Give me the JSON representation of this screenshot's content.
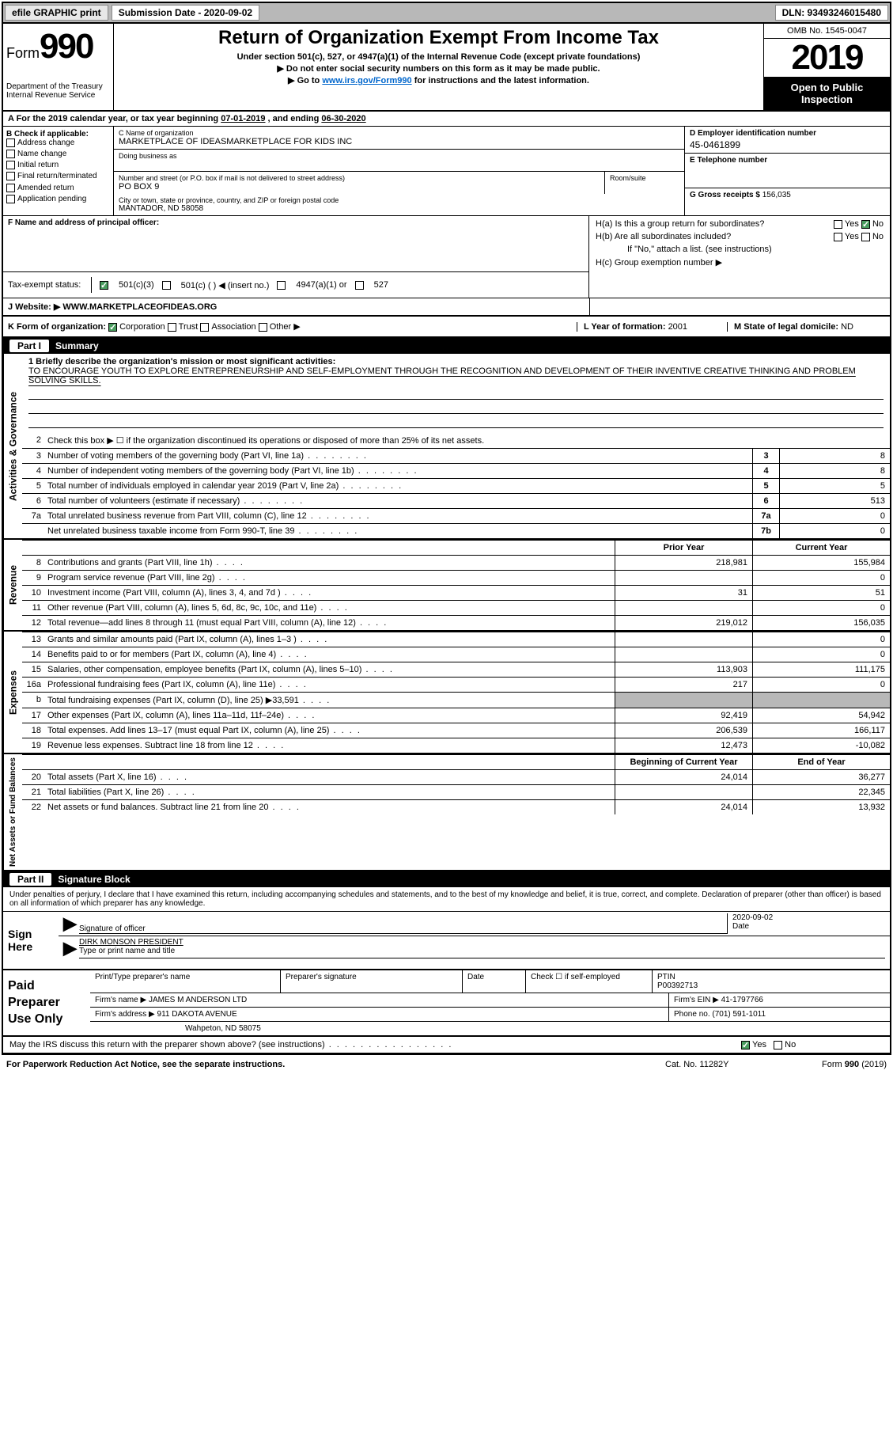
{
  "topbar": {
    "efile": "efile GRAPHIC print",
    "subdate_lbl": "Submission Date - ",
    "subdate": "2020-09-02",
    "dln": "DLN: 93493246015480"
  },
  "header": {
    "form": "Form",
    "num": "990",
    "dept": "Department of the Treasury",
    "irs": "Internal Revenue Service",
    "title": "Return of Organization Exempt From Income Tax",
    "sub1": "Under section 501(c), 527, or 4947(a)(1) of the Internal Revenue Code (except private foundations)",
    "sub2": "▶ Do not enter social security numbers on this form as it may be made public.",
    "sub3_pre": "▶ Go to ",
    "sub3_link": "www.irs.gov/Form990",
    "sub3_post": " for instructions and the latest information.",
    "omb": "OMB No. 1545-0047",
    "year": "2019",
    "open": "Open to Public Inspection"
  },
  "lineA": {
    "text_pre": "A For the 2019 calendar year, or tax year beginning ",
    "begin": "07-01-2019",
    "text_mid": " , and ending ",
    "end": "06-30-2020"
  },
  "colB": {
    "hdr": "B Check if applicable:",
    "items": [
      "Address change",
      "Name change",
      "Initial return",
      "Final return/terminated",
      "Amended return",
      "Application pending"
    ]
  },
  "colC": {
    "name_lbl": "C Name of organization",
    "name": "MARKETPLACE OF IDEASMARKETPLACE FOR KIDS INC",
    "dba_lbl": "Doing business as",
    "addr_lbl": "Number and street (or P.O. box if mail is not delivered to street address)",
    "addr": "PO BOX 9",
    "room_lbl": "Room/suite",
    "city_lbl": "City or town, state or province, country, and ZIP or foreign postal code",
    "city": "MANTADOR, ND  58058"
  },
  "colD": {
    "ein_lbl": "D Employer identification number",
    "ein": "45-0461899",
    "tel_lbl": "E Telephone number",
    "gross_lbl": "G Gross receipts $ ",
    "gross": "156,035"
  },
  "colF": {
    "lbl": "F  Name and address of principal officer:",
    "te_lbl": "Tax-exempt status:",
    "opts": [
      "501(c)(3)",
      "501(c) (   ) ◀ (insert no.)",
      "4947(a)(1) or",
      "527"
    ]
  },
  "colH": {
    "a": "H(a)  Is this a group return for subordinates?",
    "b": "H(b)  Are all subordinates included?",
    "b2": "If \"No,\" attach a list. (see instructions)",
    "c": "H(c)  Group exemption number ▶",
    "yes": "Yes",
    "no": "No"
  },
  "secJ": {
    "lbl": "J    Website: ▶  ",
    "val": "WWW.MARKETPLACEOFIDEAS.ORG"
  },
  "secK": {
    "lbl": "K Form of organization:",
    "opts": [
      "Corporation",
      "Trust",
      "Association",
      "Other ▶"
    ],
    "l_lbl": "L Year of formation: ",
    "l_val": "2001",
    "m_lbl": "M State of legal domicile: ",
    "m_val": "ND"
  },
  "part1": {
    "hdr": "Summary",
    "partnum": "Part I",
    "side_ag": "Activities & Governance",
    "side_rev": "Revenue",
    "side_exp": "Expenses",
    "side_na": "Net Assets or Fund Balances",
    "q1_lbl": "1   Briefly describe the organization's mission or most significant activities:",
    "q1_val": "TO ENCOURAGE YOUTH TO EXPLORE ENTREPRENEURSHIP AND SELF-EMPLOYMENT THROUGH THE RECOGNITION AND DEVELOPMENT OF THEIR INVENTIVE CREATIVE THINKING AND PROBLEM SOLVING SKILLS.",
    "q2": "Check this box ▶ ☐  if the organization discontinued its operations or disposed of more than 25% of its net assets.",
    "rows_ag": [
      {
        "n": "3",
        "d": "Number of voting members of the governing body (Part VI, line 1a)",
        "b": "3",
        "v": "8"
      },
      {
        "n": "4",
        "d": "Number of independent voting members of the governing body (Part VI, line 1b)",
        "b": "4",
        "v": "8"
      },
      {
        "n": "5",
        "d": "Total number of individuals employed in calendar year 2019 (Part V, line 2a)",
        "b": "5",
        "v": "5"
      },
      {
        "n": "6",
        "d": "Total number of volunteers (estimate if necessary)",
        "b": "6",
        "v": "513"
      },
      {
        "n": "7a",
        "d": "Total unrelated business revenue from Part VIII, column (C), line 12",
        "b": "7a",
        "v": "0"
      },
      {
        "n": "",
        "d": "Net unrelated business taxable income from Form 990-T, line 39",
        "b": "7b",
        "v": "0"
      }
    ],
    "col_prior": "Prior Year",
    "col_curr": "Current Year",
    "rows_rev": [
      {
        "n": "8",
        "d": "Contributions and grants (Part VIII, line 1h)",
        "p": "218,981",
        "c": "155,984"
      },
      {
        "n": "9",
        "d": "Program service revenue (Part VIII, line 2g)",
        "p": "",
        "c": "0"
      },
      {
        "n": "10",
        "d": "Investment income (Part VIII, column (A), lines 3, 4, and 7d )",
        "p": "31",
        "c": "51"
      },
      {
        "n": "11",
        "d": "Other revenue (Part VIII, column (A), lines 5, 6d, 8c, 9c, 10c, and 11e)",
        "p": "",
        "c": "0"
      },
      {
        "n": "12",
        "d": "Total revenue—add lines 8 through 11 (must equal Part VIII, column (A), line 12)",
        "p": "219,012",
        "c": "156,035"
      }
    ],
    "rows_exp": [
      {
        "n": "13",
        "d": "Grants and similar amounts paid (Part IX, column (A), lines 1–3 )",
        "p": "",
        "c": "0"
      },
      {
        "n": "14",
        "d": "Benefits paid to or for members (Part IX, column (A), line 4)",
        "p": "",
        "c": "0"
      },
      {
        "n": "15",
        "d": "Salaries, other compensation, employee benefits (Part IX, column (A), lines 5–10)",
        "p": "113,903",
        "c": "111,175"
      },
      {
        "n": "16a",
        "d": "Professional fundraising fees (Part IX, column (A), line 11e)",
        "p": "217",
        "c": "0"
      },
      {
        "n": "b",
        "d": "Total fundraising expenses (Part IX, column (D), line 25) ▶33,591",
        "p": "grey",
        "c": "grey"
      },
      {
        "n": "17",
        "d": "Other expenses (Part IX, column (A), lines 11a–11d, 11f–24e)",
        "p": "92,419",
        "c": "54,942"
      },
      {
        "n": "18",
        "d": "Total expenses. Add lines 13–17 (must equal Part IX, column (A), line 25)",
        "p": "206,539",
        "c": "166,117"
      },
      {
        "n": "19",
        "d": "Revenue less expenses. Subtract line 18 from line 12",
        "p": "12,473",
        "c": "-10,082"
      }
    ],
    "col_begin": "Beginning of Current Year",
    "col_end": "End of Year",
    "rows_na": [
      {
        "n": "20",
        "d": "Total assets (Part X, line 16)",
        "p": "24,014",
        "c": "36,277"
      },
      {
        "n": "21",
        "d": "Total liabilities (Part X, line 26)",
        "p": "",
        "c": "22,345"
      },
      {
        "n": "22",
        "d": "Net assets or fund balances. Subtract line 21 from line 20",
        "p": "24,014",
        "c": "13,932"
      }
    ]
  },
  "part2": {
    "partnum": "Part II",
    "hdr": "Signature Block",
    "intro": "Under penalties of perjury, I declare that I have examined this return, including accompanying schedules and statements, and to the best of my knowledge and belief, it is true, correct, and complete. Declaration of preparer (other than officer) is based on all information of which preparer has any knowledge.",
    "sign_here": "Sign Here",
    "sig_lbl": "Signature of officer",
    "date_lbl": "Date",
    "date_val": "2020-09-02",
    "name_val": "DIRK MONSON  PRESIDENT",
    "name_lbl": "Type or print name and title",
    "paid": "Paid Preparer Use Only",
    "p_name_lbl": "Print/Type preparer's name",
    "p_sig_lbl": "Preparer's signature",
    "p_date_lbl": "Date",
    "p_check": "Check ☐ if self-employed",
    "ptin_lbl": "PTIN",
    "ptin": "P00392713",
    "firm_name_lbl": "Firm's name    ▶ ",
    "firm_name": "JAMES M ANDERSON LTD",
    "firm_ein_lbl": "Firm's EIN ▶ ",
    "firm_ein": "41-1797766",
    "firm_addr_lbl": "Firm's address ▶ ",
    "firm_addr1": "911 DAKOTA AVENUE",
    "firm_addr2": "Wahpeton, ND  58075",
    "phone_lbl": "Phone no. ",
    "phone": "(701) 591-1011",
    "discuss": "May the IRS discuss this return with the preparer shown above? (see instructions)",
    "yes": "Yes",
    "no": "No"
  },
  "footer": {
    "l": "For Paperwork Reduction Act Notice, see the separate instructions.",
    "m": "Cat. No. 11282Y",
    "r": "Form 990 (2019)"
  }
}
